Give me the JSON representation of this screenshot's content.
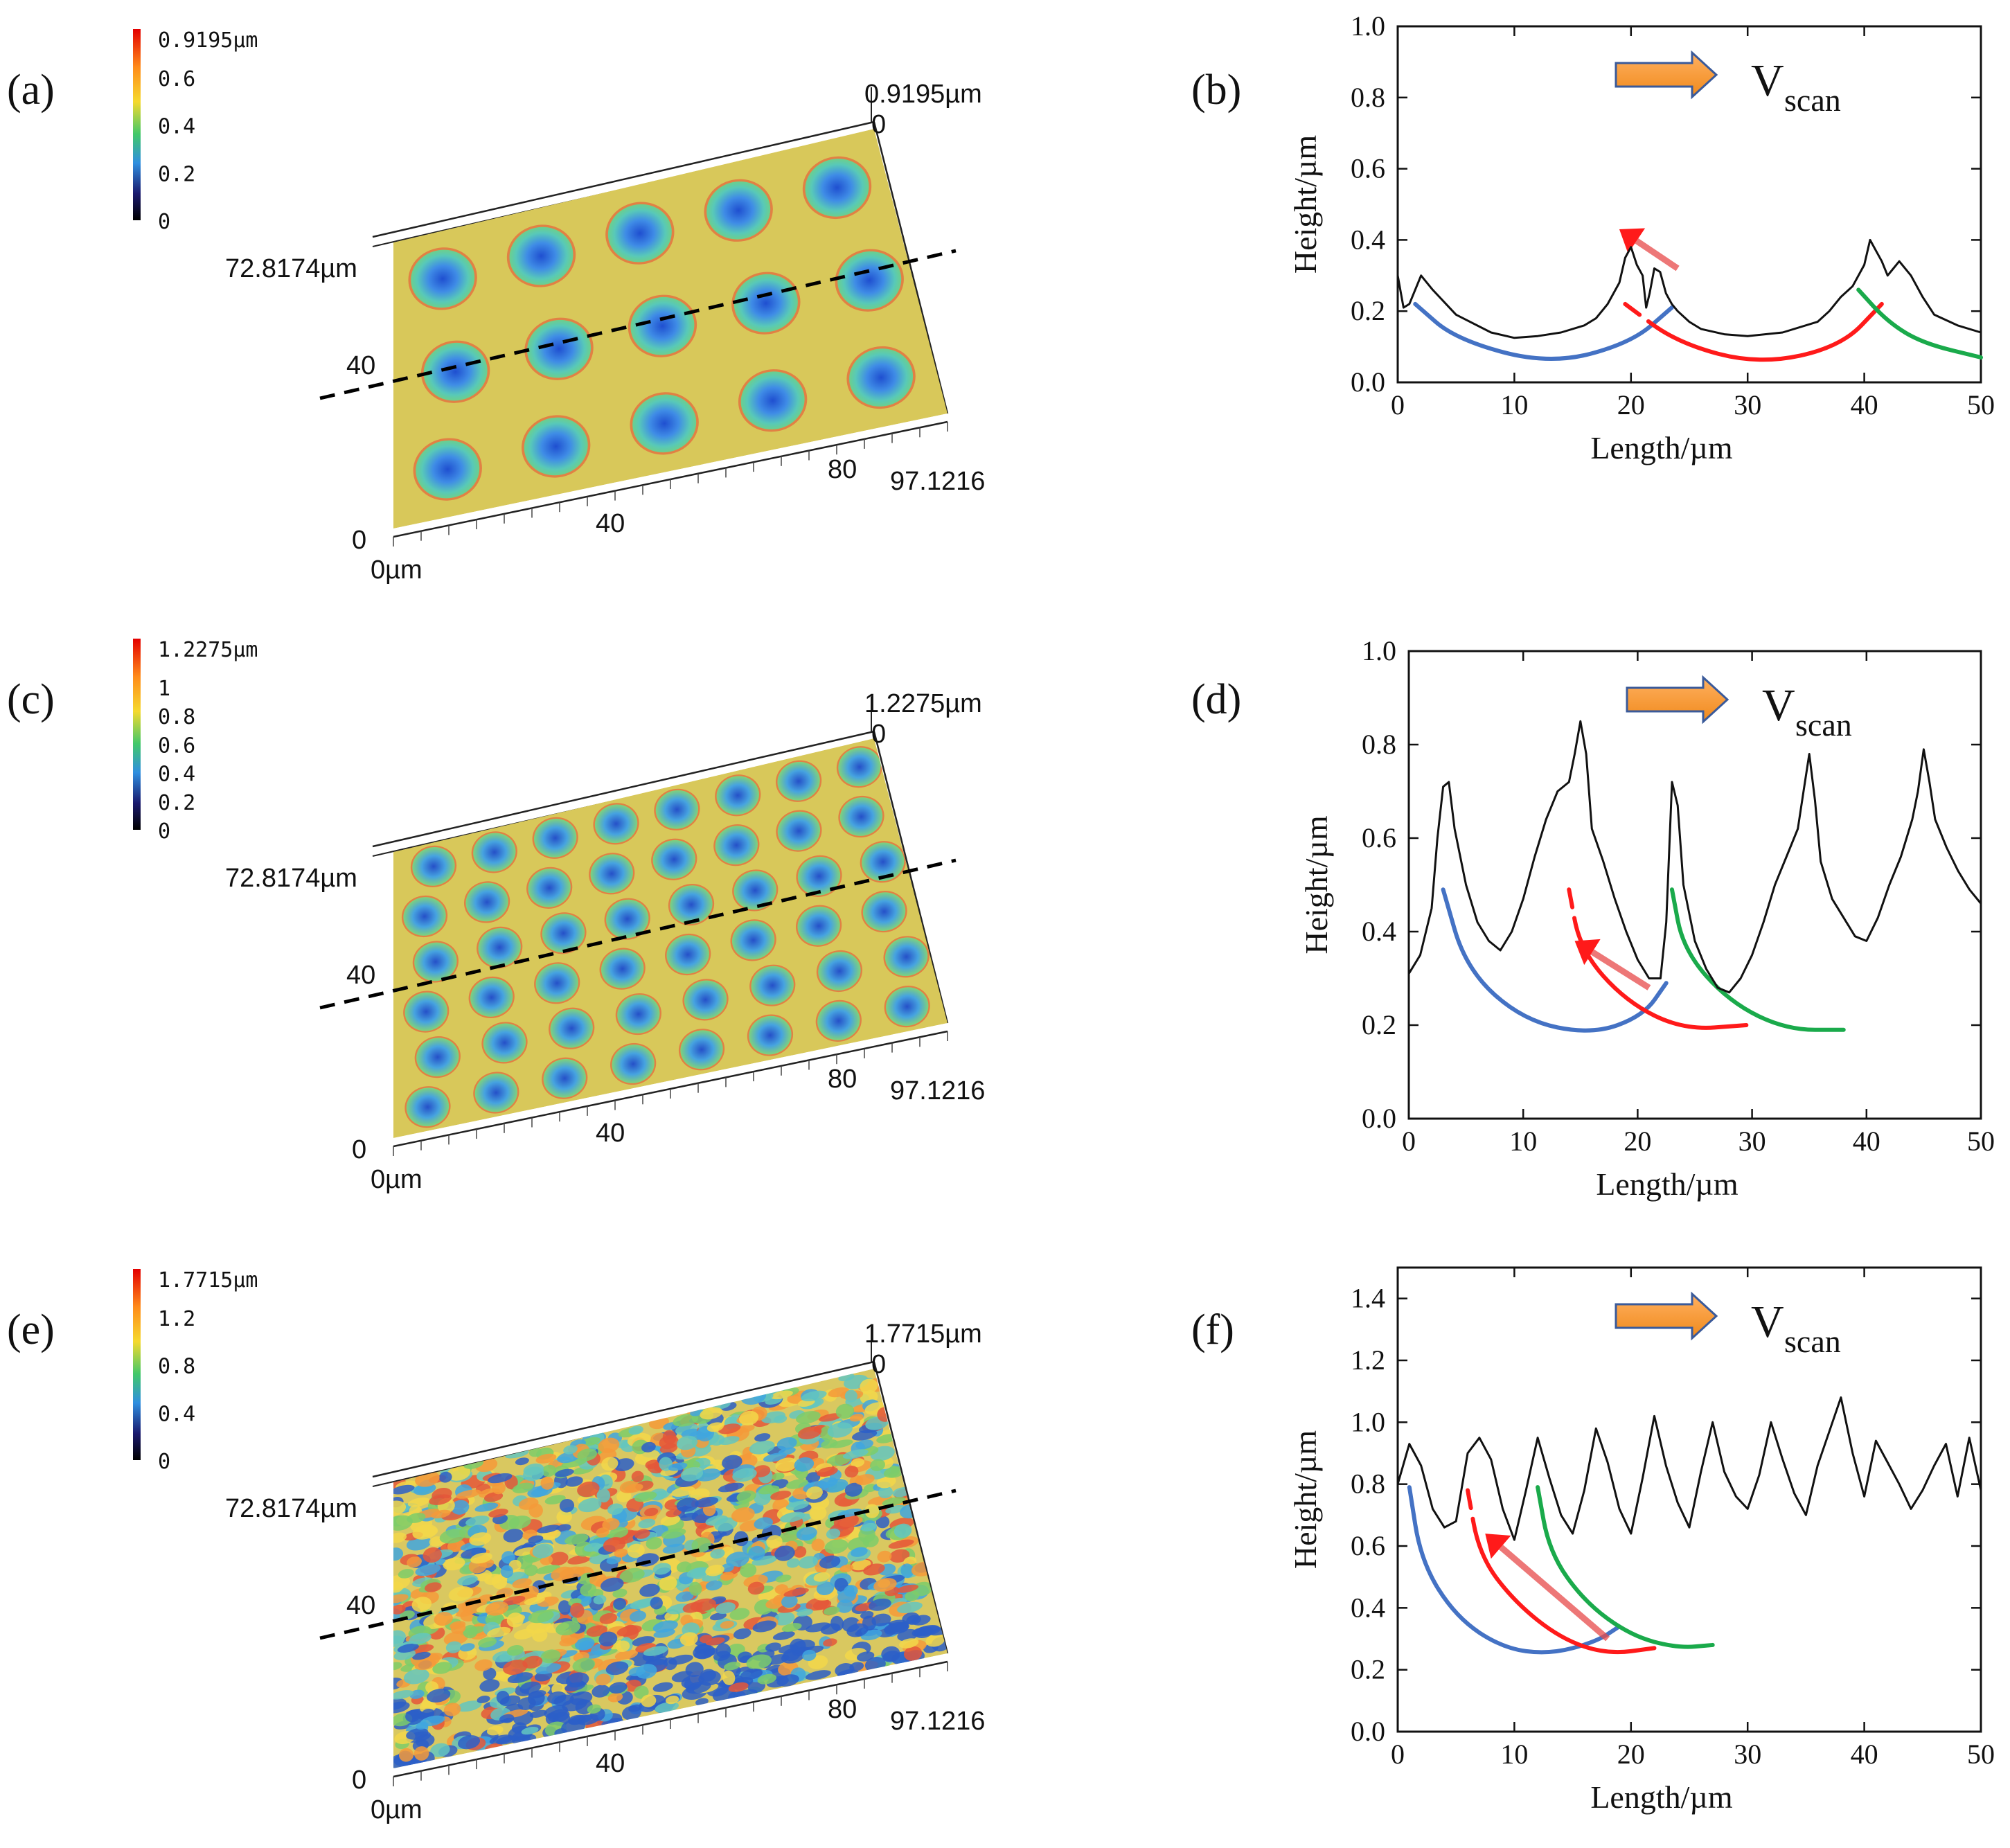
{
  "chart_data": [
    {
      "panel": "(a)",
      "type": "surface",
      "colorbar": {
        "max_label": "0.9195µm",
        "ticks": [
          "0.6",
          "0.4",
          "0.2",
          "0"
        ],
        "colors": [
          "#e30000",
          "#ff8c1a",
          "#f5d92e",
          "#42c86a",
          "#2f8fe0",
          "#1a1a6e",
          "#000000"
        ]
      },
      "z_label": "0.9195µm",
      "z_zero": "0",
      "y_max_label": "72.8174µm",
      "y_tick": "40",
      "y_zero": "0",
      "x_zero": "0µm",
      "x_ticks": [
        "40",
        "80"
      ],
      "x_max_label": "97.1216",
      "texture": "large-domes"
    },
    {
      "panel": "(b)",
      "type": "line",
      "xlabel": "Length/µm",
      "ylabel": "Height/µm",
      "xlim": [
        0,
        50
      ],
      "ylim": [
        0,
        1.0
      ],
      "xticks": [
        "0",
        "10",
        "20",
        "30",
        "40",
        "50"
      ],
      "yticks": [
        "0.0",
        "0.2",
        "0.4",
        "0.6",
        "0.8",
        "1.0"
      ],
      "legend": {
        "label": "V",
        "subscript": "scan"
      },
      "series": [
        {
          "name": "profile",
          "color": "#111111",
          "x": [
            0,
            0.5,
            1,
            2,
            3,
            5,
            8,
            10,
            12,
            14,
            16,
            17,
            18,
            19,
            19.5,
            20,
            20.5,
            21,
            21.3,
            21.6,
            22,
            22.5,
            23,
            23.5,
            24,
            25,
            26,
            28,
            30,
            33,
            36,
            37,
            38,
            39,
            40,
            40.5,
            41,
            41.5,
            42,
            42.5,
            43,
            44,
            45,
            46,
            48,
            50
          ],
          "y": [
            0.3,
            0.21,
            0.22,
            0.3,
            0.26,
            0.19,
            0.14,
            0.125,
            0.13,
            0.14,
            0.16,
            0.18,
            0.22,
            0.28,
            0.35,
            0.38,
            0.33,
            0.3,
            0.21,
            0.25,
            0.32,
            0.31,
            0.25,
            0.22,
            0.2,
            0.17,
            0.15,
            0.135,
            0.13,
            0.14,
            0.17,
            0.2,
            0.24,
            0.27,
            0.33,
            0.4,
            0.37,
            0.34,
            0.3,
            0.32,
            0.34,
            0.3,
            0.24,
            0.19,
            0.16,
            0.14
          ]
        }
      ],
      "arcs": [
        {
          "color": "#4472c4",
          "points": [
            [
              1.5,
              0.22
            ],
            [
              5,
              0.12
            ],
            [
              13,
              0.05
            ],
            [
              20,
              0.11
            ],
            [
              23.5,
              0.21
            ]
          ],
          "dashed_end": true
        },
        {
          "color": "#ff1a1a",
          "points": [
            [
              19.5,
              0.22
            ],
            [
              24,
              0.11
            ],
            [
              31,
              0.05
            ],
            [
              38,
              0.1
            ],
            [
              41.5,
              0.22
            ]
          ],
          "dashed_start": true
        },
        {
          "color": "#1aaa4b",
          "points": [
            [
              39.5,
              0.26
            ],
            [
              42,
              0.17
            ],
            [
              45,
              0.11
            ],
            [
              50,
              0.07
            ]
          ]
        }
      ],
      "motion_arrow": {
        "from": [
          24,
          0.32
        ],
        "to": [
          19,
          0.43
        ]
      }
    },
    {
      "panel": "(c)",
      "type": "surface",
      "colorbar": {
        "max_label": "1.2275µm",
        "ticks": [
          "1",
          "0.8",
          "0.6",
          "0.4",
          "0.2",
          "0"
        ],
        "colors": [
          "#e30000",
          "#ff8c1a",
          "#f5d92e",
          "#42c86a",
          "#2f8fe0",
          "#1a1a6e",
          "#000000"
        ]
      },
      "z_label": "1.2275µm",
      "z_zero": "0",
      "y_max_label": "72.8174µm",
      "y_tick": "40",
      "y_zero": "0",
      "x_zero": "0µm",
      "x_ticks": [
        "40",
        "80"
      ],
      "x_max_label": "97.1216",
      "texture": "medium-domes"
    },
    {
      "panel": "(d)",
      "type": "line",
      "xlabel": "Length/µm",
      "ylabel": "Height/µm",
      "xlim": [
        0,
        50
      ],
      "ylim": [
        0,
        1.0
      ],
      "xticks": [
        "0",
        "10",
        "20",
        "30",
        "40",
        "50"
      ],
      "yticks": [
        "0.0",
        "0.2",
        "0.4",
        "0.6",
        "0.8",
        "1.0"
      ],
      "legend": {
        "label": "V",
        "subscript": "scan"
      },
      "series": [
        {
          "name": "profile",
          "color": "#111111",
          "x": [
            0,
            1,
            2,
            2.5,
            3,
            3.5,
            4,
            5,
            6,
            7,
            8,
            9,
            10,
            11,
            12,
            12.5,
            13,
            14,
            14.5,
            15,
            15.5,
            16,
            17,
            18,
            19,
            20,
            21,
            22,
            22.5,
            23,
            23.5,
            24,
            25,
            26,
            27,
            28,
            29,
            30,
            31,
            32,
            33,
            34,
            34.5,
            35,
            35.5,
            36,
            37,
            38,
            39,
            40,
            41,
            42,
            43,
            44,
            44.5,
            45,
            45.5,
            46,
            47,
            48,
            49,
            50
          ],
          "y": [
            0.31,
            0.35,
            0.45,
            0.6,
            0.71,
            0.72,
            0.62,
            0.5,
            0.42,
            0.38,
            0.36,
            0.4,
            0.47,
            0.56,
            0.64,
            0.67,
            0.7,
            0.72,
            0.78,
            0.85,
            0.78,
            0.62,
            0.55,
            0.47,
            0.4,
            0.34,
            0.3,
            0.3,
            0.42,
            0.72,
            0.67,
            0.5,
            0.38,
            0.32,
            0.28,
            0.27,
            0.3,
            0.35,
            0.42,
            0.5,
            0.56,
            0.62,
            0.7,
            0.78,
            0.68,
            0.55,
            0.47,
            0.43,
            0.39,
            0.38,
            0.43,
            0.5,
            0.56,
            0.64,
            0.7,
            0.79,
            0.72,
            0.64,
            0.58,
            0.53,
            0.49,
            0.46
          ]
        }
      ],
      "arcs": [
        {
          "color": "#4472c4",
          "points": [
            [
              3,
              0.49
            ],
            [
              5,
              0.32
            ],
            [
              10,
              0.21
            ],
            [
              16,
              0.18
            ],
            [
              20.5,
              0.22
            ],
            [
              22.5,
              0.29
            ]
          ],
          "dashed_end": true
        },
        {
          "color": "#ff1a1a",
          "points": [
            [
              14,
              0.49
            ],
            [
              15,
              0.36
            ],
            [
              19,
              0.25
            ],
            [
              24,
              0.19
            ],
            [
              29.5,
              0.2
            ]
          ],
          "dashed_start": true
        },
        {
          "color": "#1aaa4b",
          "points": [
            [
              23,
              0.49
            ],
            [
              24,
              0.36
            ],
            [
              28,
              0.25
            ],
            [
              33,
              0.19
            ],
            [
              38,
              0.19
            ]
          ]
        }
      ],
      "motion_arrow": {
        "from": [
          21,
          0.28
        ],
        "to": [
          14.5,
          0.38
        ]
      }
    },
    {
      "panel": "(e)",
      "type": "surface",
      "colorbar": {
        "max_label": "1.7715µm",
        "ticks": [
          "1.2",
          "0.8",
          "0.4",
          "0"
        ],
        "colors": [
          "#e30000",
          "#ff8c1a",
          "#f5d92e",
          "#42c86a",
          "#2f8fe0",
          "#1a1a6e",
          "#000000"
        ]
      },
      "z_label": "1.7715µm",
      "z_zero": "0",
      "y_max_label": "72.8174µm",
      "y_tick": "40",
      "y_zero": "0",
      "x_zero": "0µm",
      "x_ticks": [
        "40",
        "80"
      ],
      "x_max_label": "97.1216",
      "texture": "fine-scales"
    },
    {
      "panel": "(f)",
      "type": "line",
      "xlabel": "Length/µm",
      "ylabel": "Height/µm",
      "xlim": [
        0,
        50
      ],
      "ylim": [
        0,
        1.5
      ],
      "xticks": [
        "0",
        "10",
        "20",
        "30",
        "40",
        "50"
      ],
      "yticks": [
        "0.0",
        "0.2",
        "0.4",
        "0.6",
        "0.8",
        "1.0",
        "1.2",
        "1.4"
      ],
      "legend": {
        "label": "V",
        "subscript": "scan"
      },
      "series": [
        {
          "name": "profile",
          "color": "#111111",
          "x": [
            0,
            1,
            2,
            3,
            4,
            5,
            6,
            7,
            8,
            9,
            10,
            11,
            12,
            13,
            14,
            15,
            16,
            17,
            18,
            19,
            20,
            21,
            22,
            23,
            24,
            25,
            26,
            27,
            28,
            29,
            30,
            31,
            32,
            33,
            34,
            35,
            36,
            37,
            38,
            39,
            40,
            41,
            42,
            43,
            44,
            45,
            46,
            47,
            48,
            49,
            50
          ],
          "y": [
            0.8,
            0.93,
            0.86,
            0.72,
            0.66,
            0.68,
            0.9,
            0.95,
            0.88,
            0.72,
            0.62,
            0.78,
            0.95,
            0.82,
            0.7,
            0.64,
            0.78,
            0.98,
            0.87,
            0.72,
            0.64,
            0.82,
            1.02,
            0.86,
            0.74,
            0.66,
            0.84,
            1.0,
            0.84,
            0.76,
            0.72,
            0.83,
            1.0,
            0.88,
            0.77,
            0.7,
            0.86,
            0.97,
            1.08,
            0.9,
            0.76,
            0.94,
            0.87,
            0.8,
            0.72,
            0.78,
            0.86,
            0.93,
            0.76,
            0.95,
            0.78
          ]
        }
      ],
      "arcs": [
        {
          "color": "#4472c4",
          "points": [
            [
              1,
              0.79
            ],
            [
              2,
              0.55
            ],
            [
              5,
              0.37
            ],
            [
              9,
              0.27
            ],
            [
              13,
              0.25
            ],
            [
              17,
              0.29
            ],
            [
              19,
              0.34
            ]
          ],
          "dashed_end": true
        },
        {
          "color": "#ff1a1a",
          "points": [
            [
              6,
              0.78
            ],
            [
              7,
              0.57
            ],
            [
              10,
              0.42
            ],
            [
              14,
              0.3
            ],
            [
              18,
              0.25
            ],
            [
              22,
              0.27
            ]
          ],
          "dashed_start": true
        },
        {
          "color": "#1aaa4b",
          "points": [
            [
              12,
              0.79
            ],
            [
              13,
              0.58
            ],
            [
              16,
              0.42
            ],
            [
              20,
              0.31
            ],
            [
              24,
              0.27
            ],
            [
              27,
              0.28
            ]
          ]
        }
      ],
      "motion_arrow": {
        "from": [
          18,
          0.3
        ],
        "to": [
          7.5,
          0.64
        ]
      }
    }
  ]
}
